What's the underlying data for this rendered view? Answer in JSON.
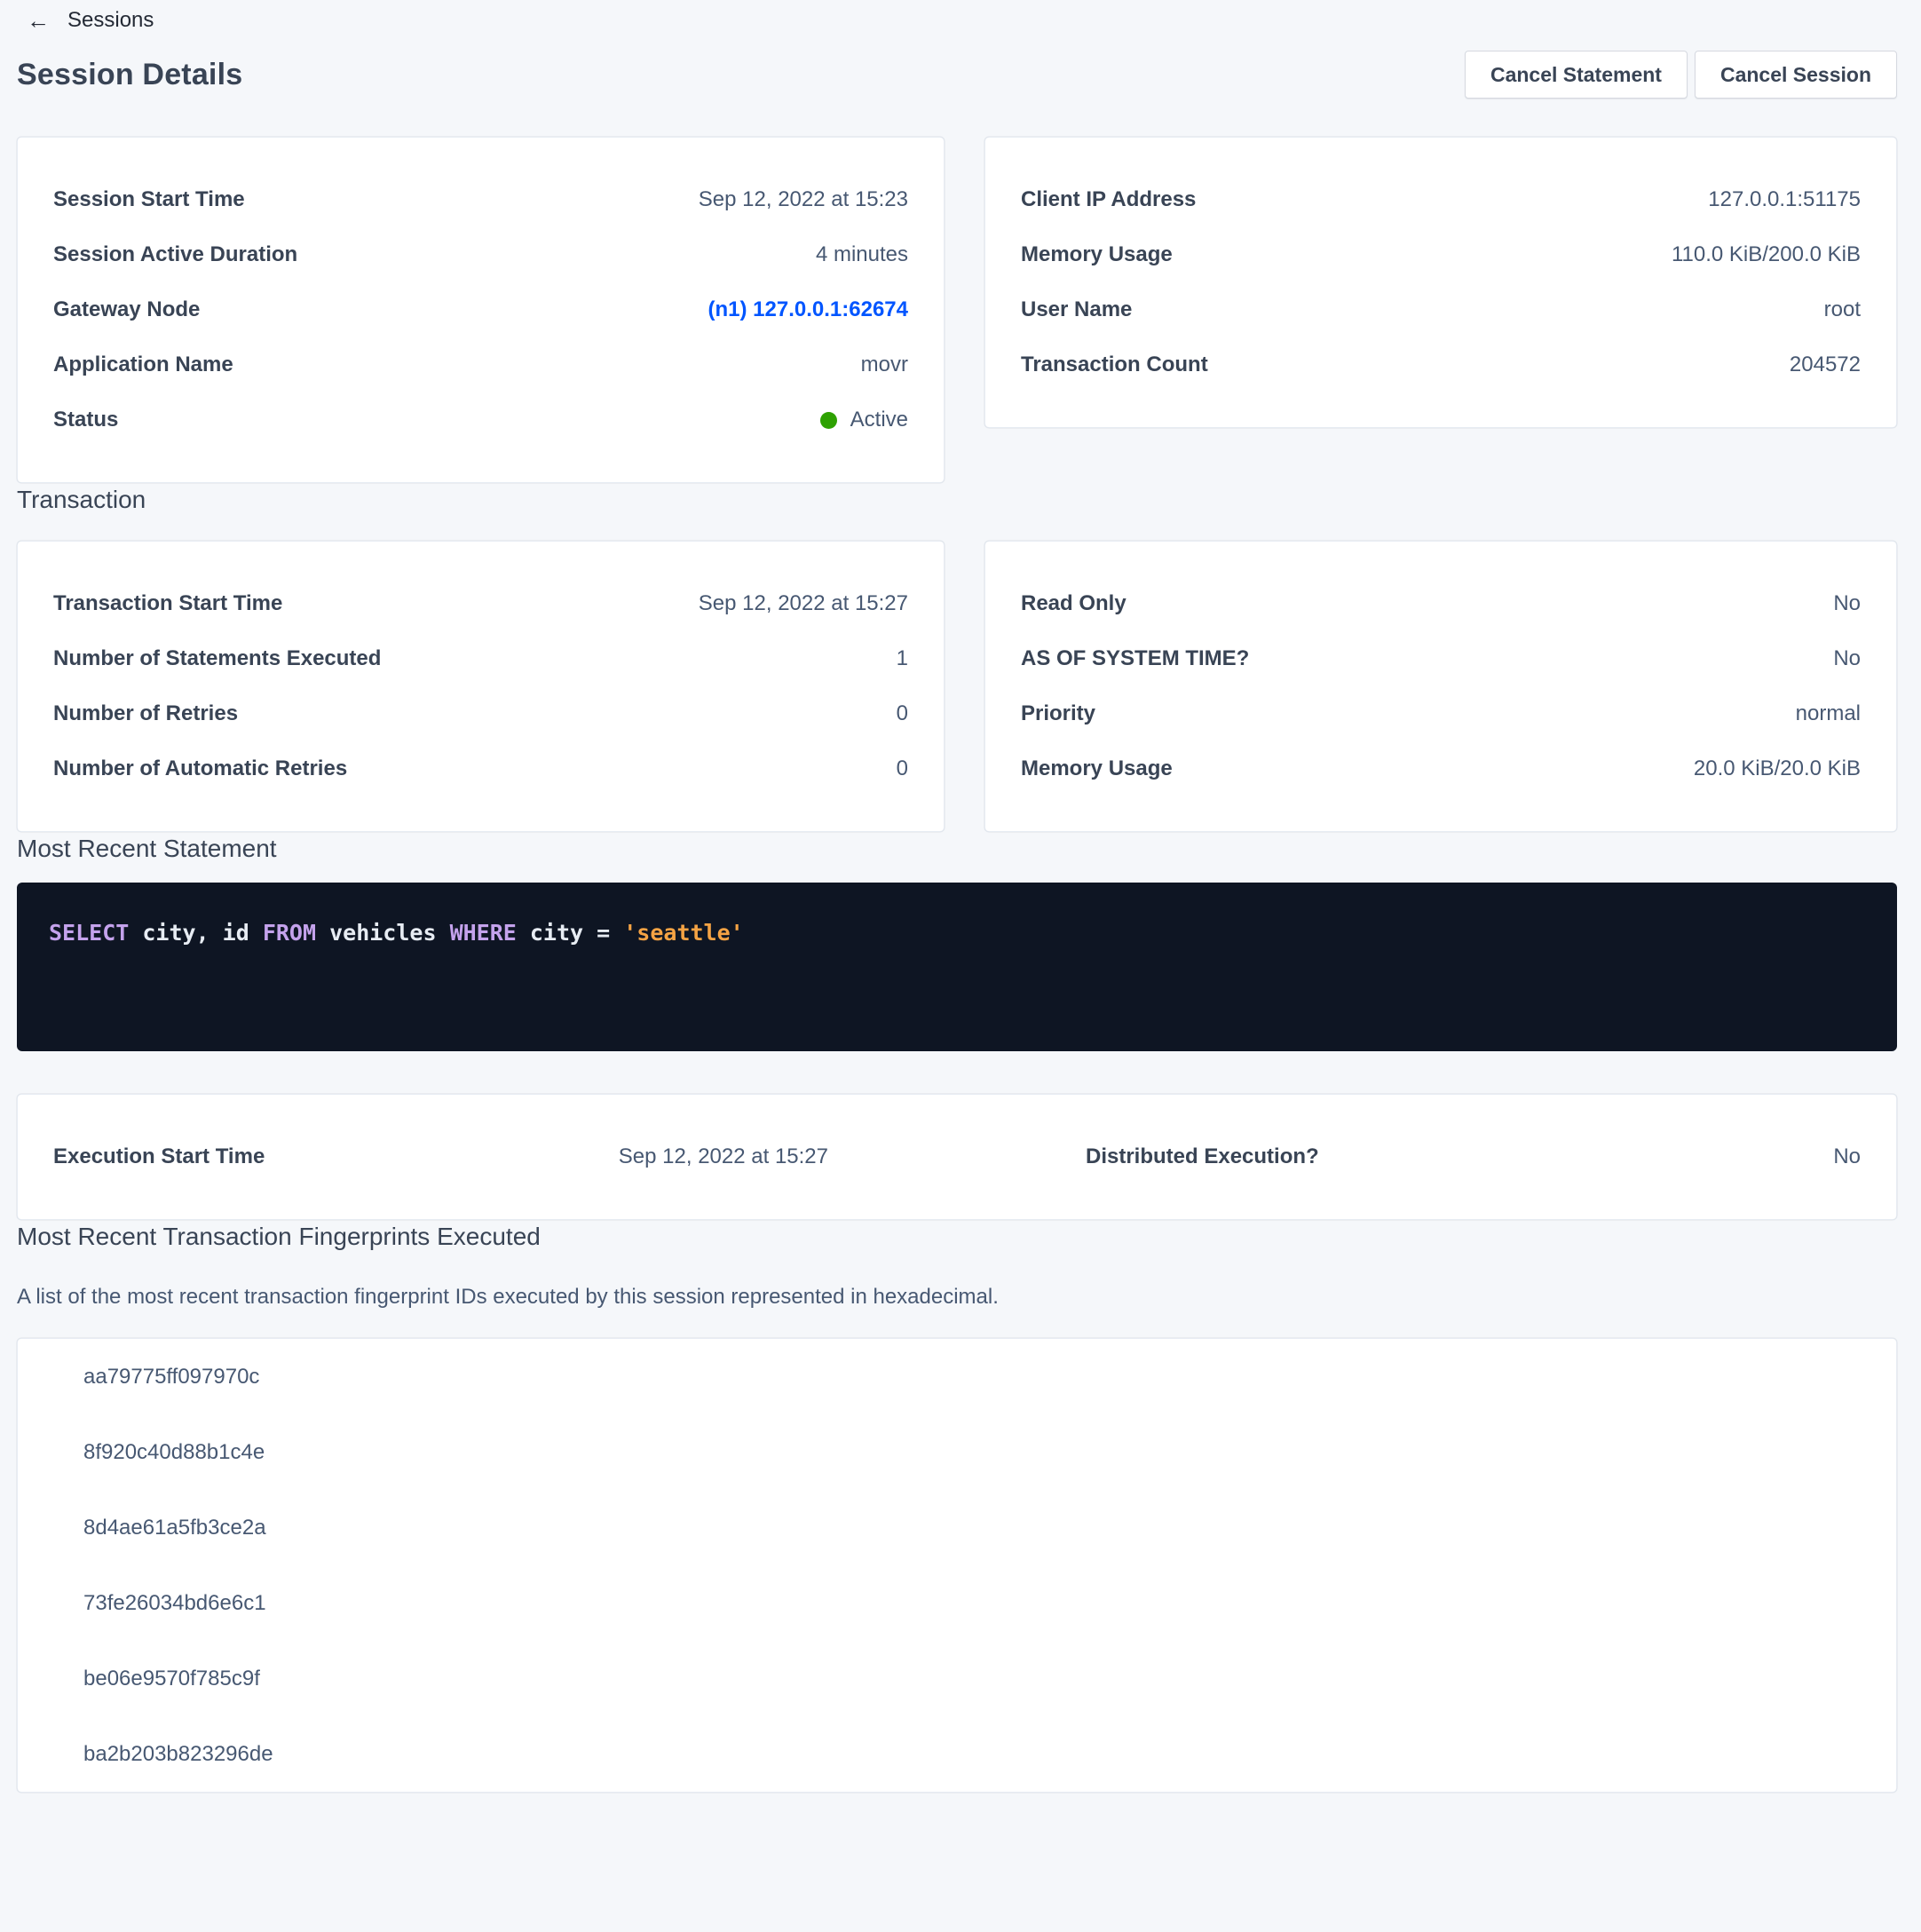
{
  "header": {
    "breadcrumb": "Sessions",
    "title": "Session Details",
    "cancel_statement_label": "Cancel Statement",
    "cancel_session_label": "Cancel Session"
  },
  "session_card": {
    "rows": [
      {
        "label": "Session Start Time",
        "value": "Sep 12, 2022 at 15:23"
      },
      {
        "label": "Session Active Duration",
        "value": "4 minutes"
      },
      {
        "label": "Gateway Node",
        "value": "(n1) 127.0.0.1:62674"
      },
      {
        "label": "Application Name",
        "value": "movr"
      },
      {
        "label": "Status",
        "value": "Active"
      }
    ]
  },
  "client_card": {
    "rows": [
      {
        "label": "Client IP Address",
        "value": "127.0.0.1:51175"
      },
      {
        "label": "Memory Usage",
        "value": "110.0 KiB/200.0 KiB"
      },
      {
        "label": "User Name",
        "value": "root"
      },
      {
        "label": "Transaction Count",
        "value": "204572"
      }
    ]
  },
  "transaction_section": {
    "heading": "Transaction",
    "left_card": {
      "rows": [
        {
          "label": "Transaction Start Time",
          "value": "Sep 12, 2022 at 15:27"
        },
        {
          "label": "Number of Statements Executed",
          "value": "1"
        },
        {
          "label": "Number of Retries",
          "value": "0"
        },
        {
          "label": "Number of Automatic Retries",
          "value": "0"
        }
      ]
    },
    "right_card": {
      "rows": [
        {
          "label": "Read Only",
          "value": "No"
        },
        {
          "label": "AS OF SYSTEM TIME?",
          "value": "No"
        },
        {
          "label": "Priority",
          "value": "normal"
        },
        {
          "label": "Memory Usage",
          "value": "20.0 KiB/20.0 KiB"
        }
      ]
    }
  },
  "statement_section": {
    "heading": "Most Recent Statement",
    "sql_tokens": [
      {
        "text": "SELECT",
        "type": "keyword"
      },
      {
        "text": " city, id ",
        "type": "plain"
      },
      {
        "text": "FROM",
        "type": "keyword"
      },
      {
        "text": " vehicles ",
        "type": "plain"
      },
      {
        "text": "WHERE",
        "type": "keyword"
      },
      {
        "text": " city = ",
        "type": "plain"
      },
      {
        "text": "'seattle'",
        "type": "string"
      }
    ]
  },
  "execution_card": {
    "pairs": [
      {
        "label": "Execution Start Time",
        "value": "Sep 12, 2022 at 15:27"
      },
      {
        "label": "Distributed Execution?",
        "value": "No"
      }
    ]
  },
  "fingerprints_section": {
    "heading": "Most Recent Transaction Fingerprints Executed",
    "description": "A list of the most recent transaction fingerprint IDs executed by this session represented in hexadecimal.",
    "ids": [
      "aa79775ff097970c",
      "8f920c40d88b1c4e",
      "8d4ae61a5fb3ce2a",
      "73fe26034bd6e6c1",
      "be06e9570f785c9f",
      "ba2b203b823296de"
    ]
  },
  "colors": {
    "page_background": "#f5f7fa",
    "status_active_green": "#2ea102",
    "link_blue": "#0055ff",
    "code_background": "#0e1523",
    "code_keyword": "#c4a2ec",
    "code_string": "#f5a344",
    "code_text": "#e7ecf3"
  }
}
